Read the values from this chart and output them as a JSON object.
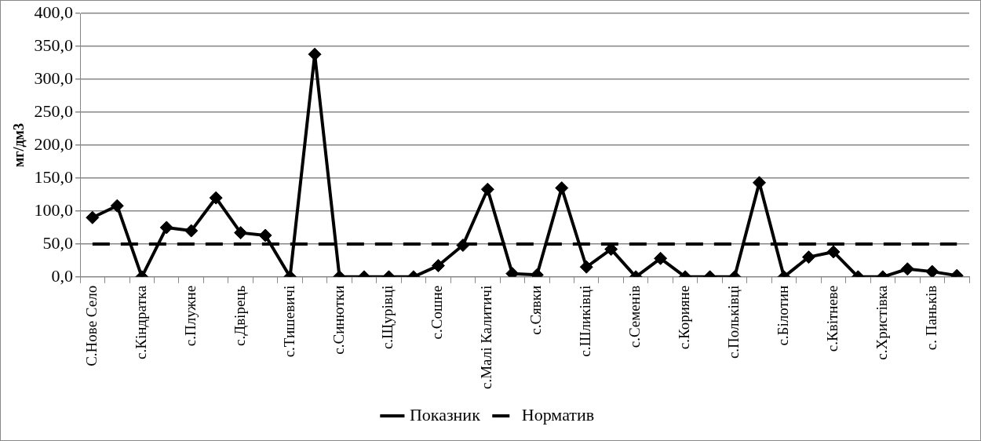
{
  "chart_data": {
    "type": "line",
    "ylabel": "мг/дм3",
    "categories": [
      "С.Нове Село",
      null,
      "с.Кіндратка",
      null,
      "с.Плужне",
      null,
      "с.Двірець",
      null,
      "с.Тишевичі",
      null,
      "с.Синютки",
      null,
      "с.Щурівці",
      null,
      "с.Сошне",
      null,
      "с.Малі Калитичі",
      null,
      "с.Сявки",
      null,
      "с.Шликівці",
      null,
      "с.Семенів",
      null,
      "с.Корияне",
      null,
      "с.Польківці",
      null,
      "с.Білотин",
      null,
      "с.Квітневе",
      null,
      "с.Христівка",
      null,
      "с. Паньків",
      null
    ],
    "series": [
      {
        "name": "Показник",
        "color": "#000000",
        "marker": "diamond",
        "line_style": "solid",
        "values": [
          90,
          108,
          0,
          75,
          70,
          120,
          67,
          63,
          0,
          338,
          0,
          0,
          0,
          0,
          17,
          48,
          133,
          5,
          3,
          135,
          15,
          42,
          0,
          28,
          0,
          0,
          0,
          143,
          0,
          30,
          38,
          0,
          0,
          12,
          8,
          2
        ]
      },
      {
        "name": "Норматив",
        "color": "#000000",
        "marker": "none",
        "line_style": "dashed",
        "values": [
          50,
          50,
          50,
          50,
          50,
          50,
          50,
          50,
          50,
          50,
          50,
          50,
          50,
          50,
          50,
          50,
          50,
          50,
          50,
          50,
          50,
          50,
          50,
          50,
          50,
          50,
          50,
          50,
          50,
          50,
          50,
          50,
          50,
          50,
          50,
          50
        ]
      }
    ],
    "ylim": [
      0,
      400
    ],
    "yticks": [
      {
        "value": 0,
        "label": "0,0"
      },
      {
        "value": 50,
        "label": "50,0"
      },
      {
        "value": 100,
        "label": "100,0"
      },
      {
        "value": 150,
        "label": "150,0"
      },
      {
        "value": 200,
        "label": "200,0"
      },
      {
        "value": 250,
        "label": "250,0"
      },
      {
        "value": 300,
        "label": "300,0"
      },
      {
        "value": 350,
        "label": "350,0"
      },
      {
        "value": 400,
        "label": "400,0"
      }
    ],
    "grid": "y",
    "legend": "bottom"
  }
}
